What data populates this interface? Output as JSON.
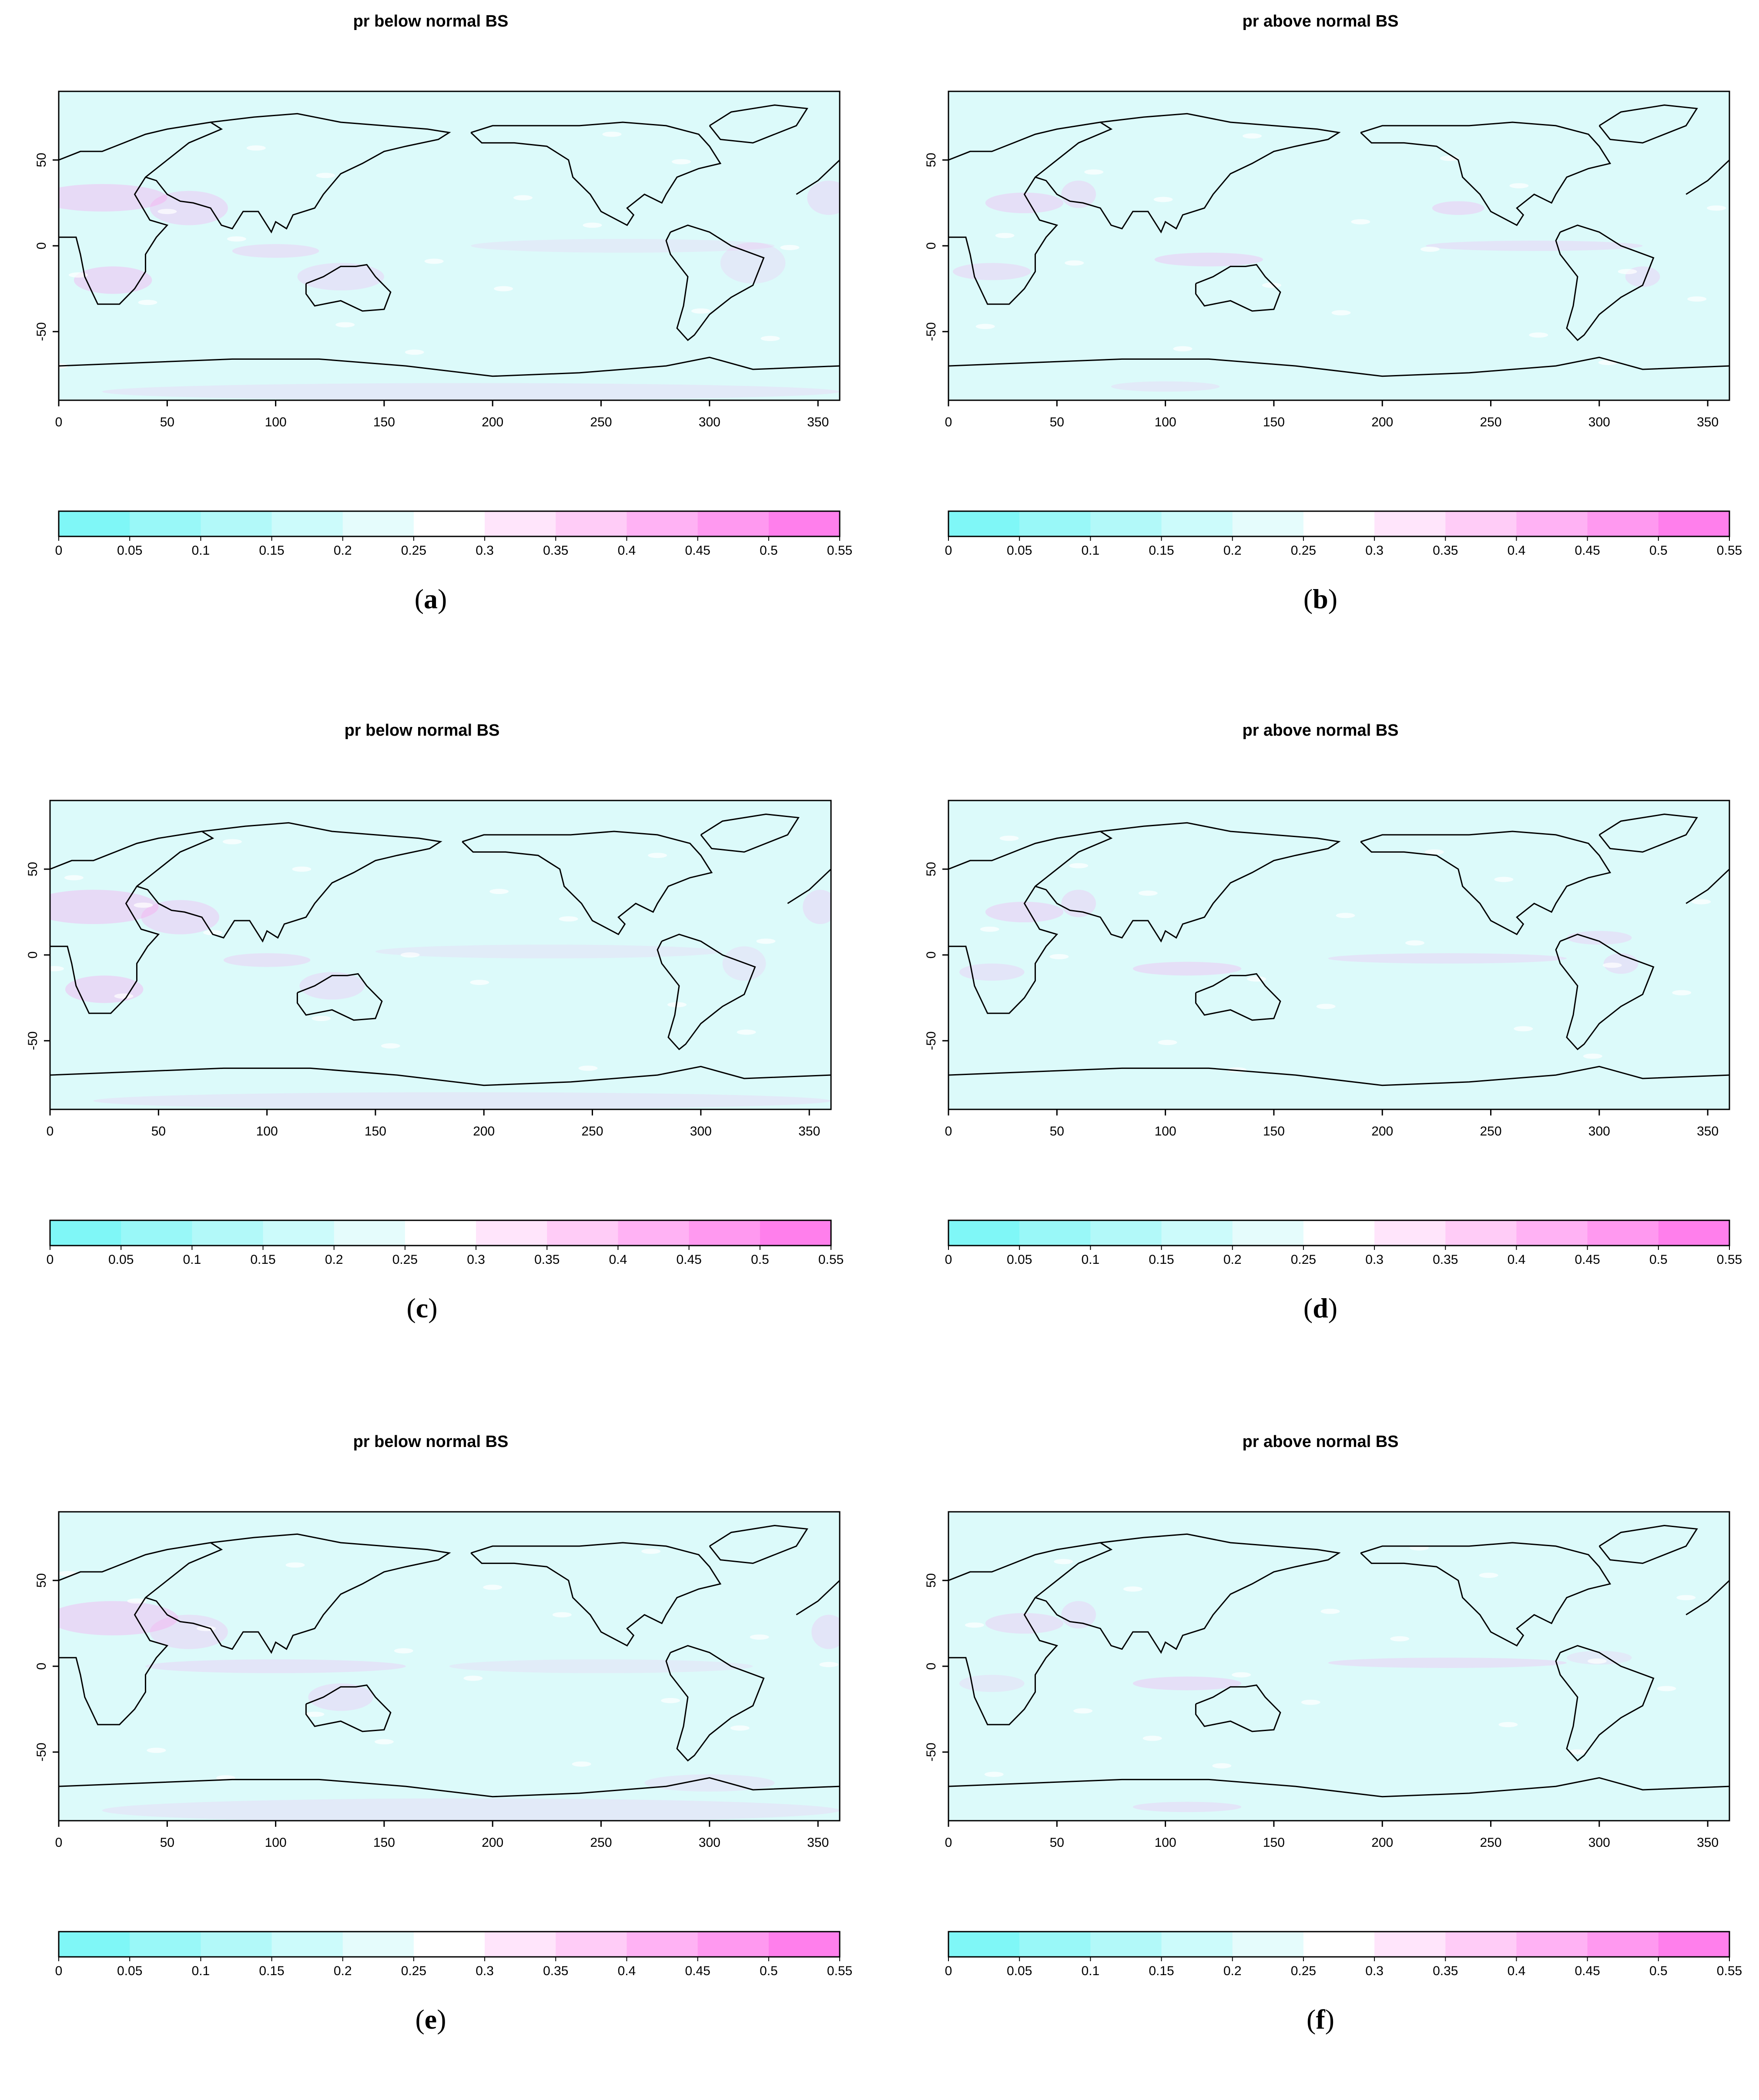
{
  "panels": [
    {
      "id": "a",
      "title": "pr below normal BS",
      "caption_letter": "a"
    },
    {
      "id": "b",
      "title": "pr above normal BS",
      "caption_letter": "b"
    },
    {
      "id": "c",
      "title": "pr below normal BS",
      "caption_letter": "c"
    },
    {
      "id": "d",
      "title": "pr above normal BS",
      "caption_letter": "d"
    },
    {
      "id": "e",
      "title": "pr below normal BS",
      "caption_letter": "e"
    },
    {
      "id": "f",
      "title": "pr above normal BS",
      "caption_letter": "f"
    }
  ],
  "axes": {
    "x_ticks": [
      "0",
      "50",
      "100",
      "150",
      "200",
      "250",
      "300",
      "350"
    ],
    "x_values": [
      0,
      50,
      100,
      150,
      200,
      250,
      300,
      350
    ],
    "x_range": [
      0,
      360
    ],
    "y_ticks": [
      "50",
      "0",
      "-50"
    ],
    "y_values": [
      50,
      0,
      -50
    ],
    "y_range": [
      -90,
      90
    ]
  },
  "colorbar": {
    "labels": [
      "0",
      "0.05",
      "0.1",
      "0.15",
      "0.2",
      "0.25",
      "0.3",
      "0.35",
      "0.4",
      "0.45",
      "0.5",
      "0.55"
    ],
    "colors": [
      "#7ff7f7",
      "#99f8f8",
      "#b2f9f9",
      "#ccfbfb",
      "#e5fcfc",
      "#ffffff",
      "#ffe5fb",
      "#ffccf7",
      "#ffb2f4",
      "#ff99f0",
      "#ff7fec"
    ]
  }
}
